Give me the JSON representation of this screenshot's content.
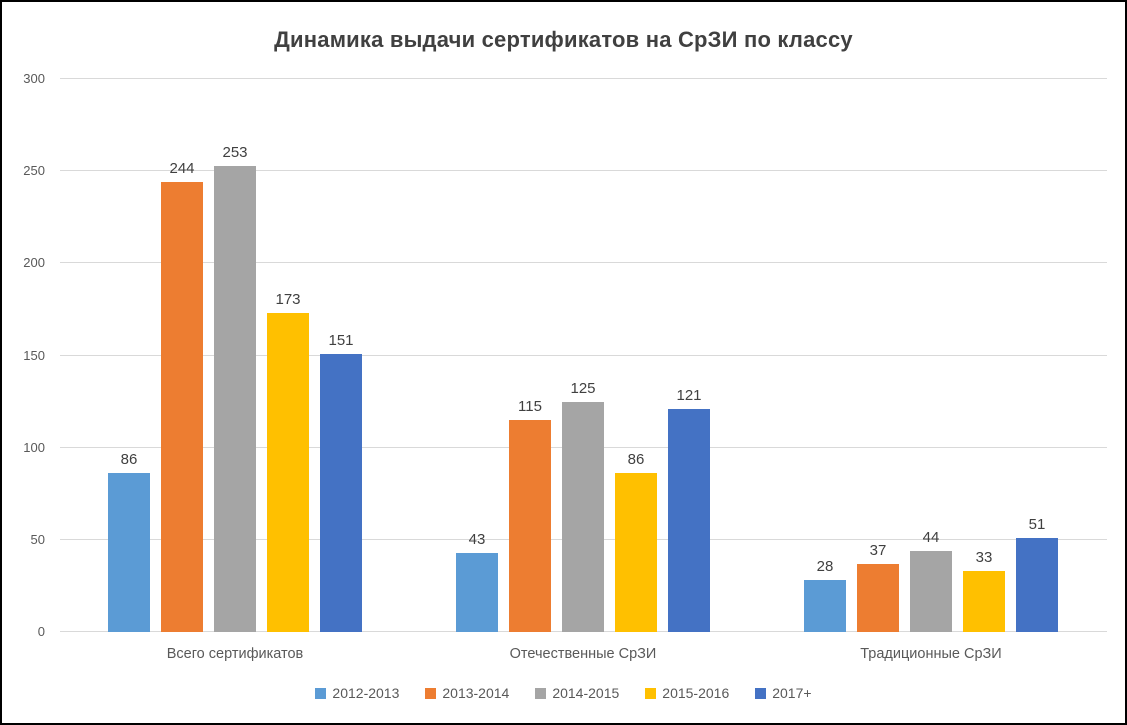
{
  "chart_data": {
    "type": "bar",
    "title": "Динамика выдачи сертификатов на СрЗИ по классу",
    "categories": [
      "Всего сертификатов",
      "Отечественные СрЗИ",
      "Традиционные СрЗИ"
    ],
    "series": [
      {
        "name": "2012-2013",
        "color": "#5B9BD5",
        "values": [
          86,
          43,
          28
        ]
      },
      {
        "name": "2013-2014",
        "color": "#ED7D31",
        "values": [
          244,
          115,
          37
        ]
      },
      {
        "name": "2014-2015",
        "color": "#A5A5A5",
        "values": [
          253,
          125,
          44
        ]
      },
      {
        "name": "2015-2016",
        "color": "#FFC000",
        "values": [
          173,
          86,
          33
        ]
      },
      {
        "name": "2017+",
        "color": "#4472C4",
        "values": [
          151,
          121,
          51
        ]
      }
    ],
    "xlabel": "",
    "ylabel": "",
    "ylim": [
      0,
      300
    ],
    "yticks": [
      0,
      50,
      100,
      150,
      200,
      250,
      300
    ],
    "grid": true,
    "data_labels": true,
    "legend_position": "bottom",
    "colors": {
      "title_text": "#404040",
      "axis_text": "#595959",
      "data_label_text": "#404040",
      "gridline": "#d9d9d9",
      "background": "#ffffff",
      "border": "#000000"
    }
  }
}
